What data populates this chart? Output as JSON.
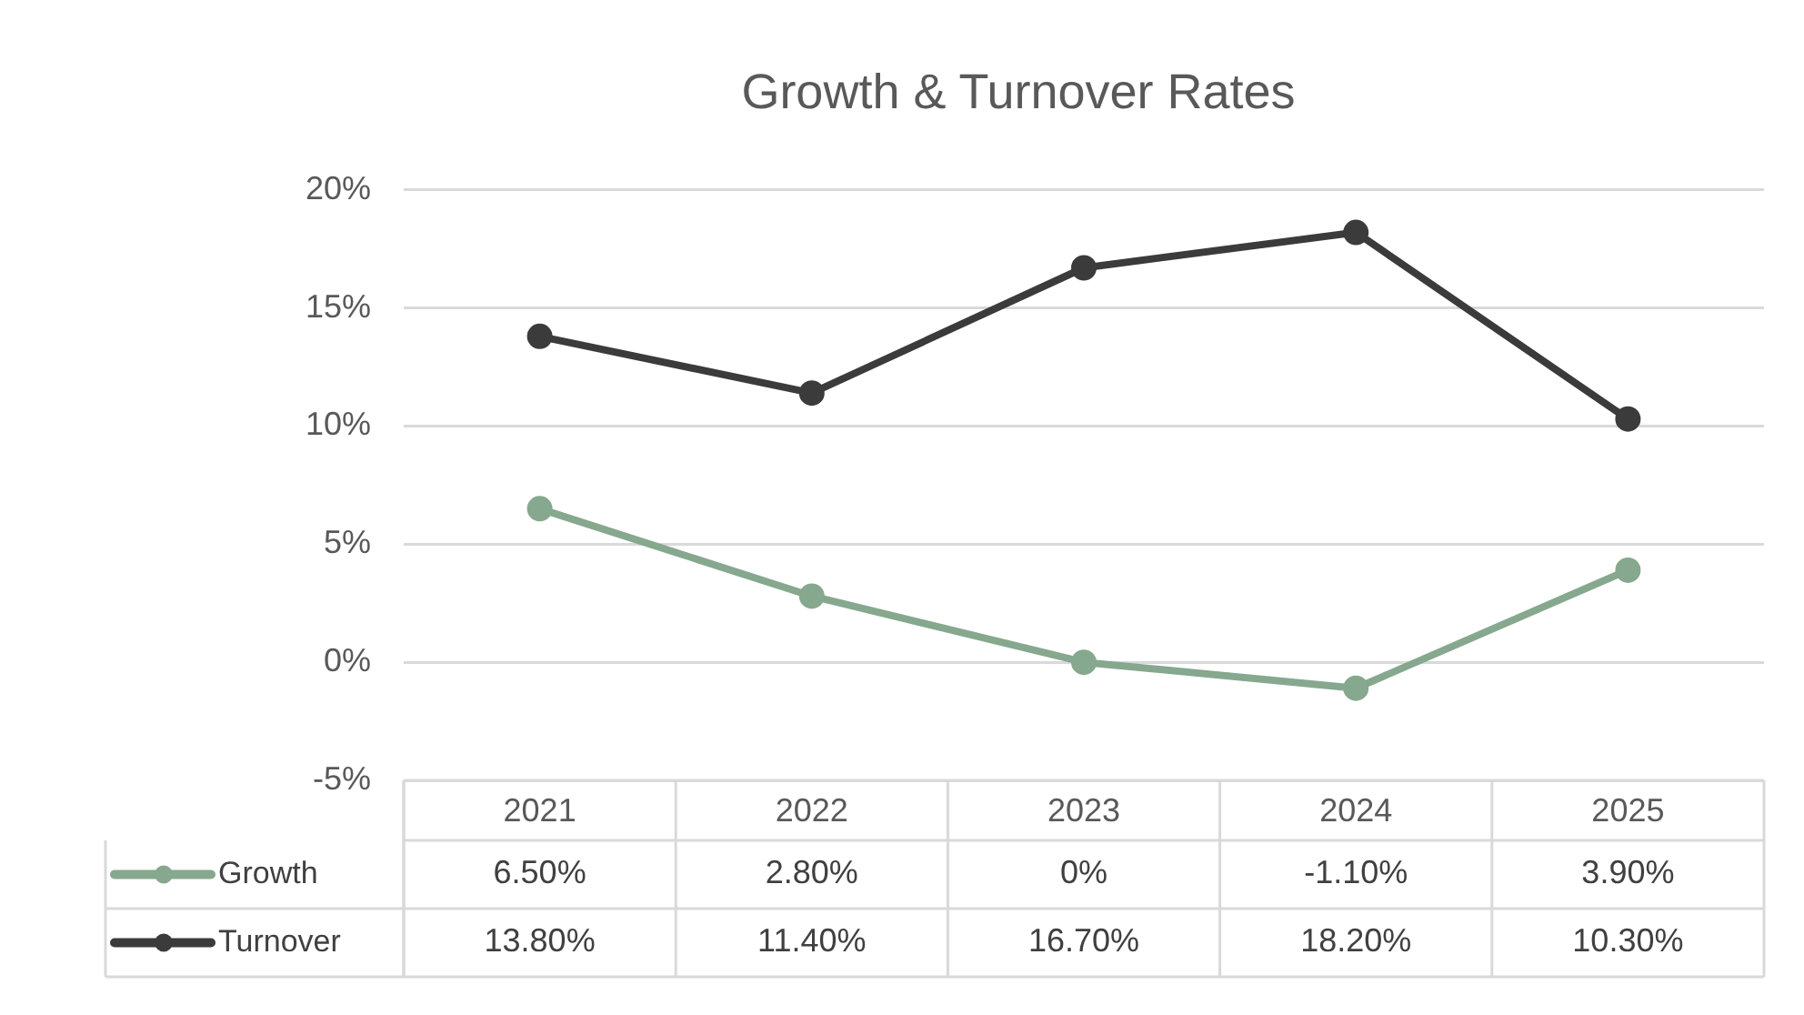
{
  "chart_data": {
    "type": "line",
    "title": "Growth & Turnover Rates",
    "categories": [
      "2021",
      "2022",
      "2023",
      "2024",
      "2025"
    ],
    "series": [
      {
        "name": "Growth",
        "color": "#86a88e",
        "values": [
          6.5,
          2.8,
          0,
          -1.1,
          3.9
        ],
        "value_labels": [
          "6.50%",
          "2.80%",
          "0%",
          "-1.10%",
          "3.90%"
        ]
      },
      {
        "name": "Turnover",
        "color": "#3b3b3b",
        "values": [
          13.8,
          11.4,
          16.7,
          18.2,
          10.3
        ],
        "value_labels": [
          "13.80%",
          "11.40%",
          "16.70%",
          "18.20%",
          "10.30%"
        ]
      }
    ],
    "ylim": [
      -5,
      20
    ],
    "yticks": [
      {
        "value": -5,
        "label": "-5%"
      },
      {
        "value": 0,
        "label": "0%"
      },
      {
        "value": 5,
        "label": "5%"
      },
      {
        "value": 10,
        "label": "10%"
      },
      {
        "value": 15,
        "label": "15%"
      },
      {
        "value": 20,
        "label": "20%"
      }
    ],
    "grid": "y",
    "legend": "bottom left",
    "marker": "circle",
    "line_style": "solid"
  }
}
